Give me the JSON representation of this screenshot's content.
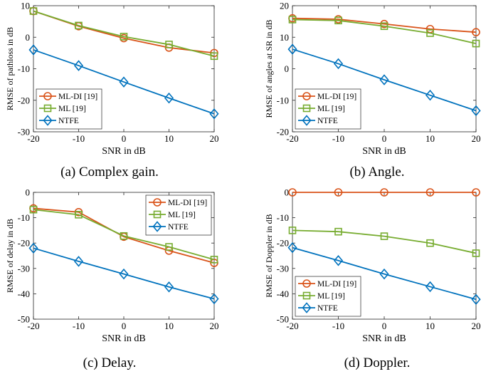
{
  "colors": {
    "ML-DI [19]": "#D95319",
    "ML [19]": "#77AC30",
    "NTFE": "#0072BD"
  },
  "chart_data": [
    {
      "type": "line",
      "caption": "(a) Complex gain.",
      "xlabel": "SNR in dB",
      "ylabel": "RMSE of pathloss in dB",
      "xlim": [
        -20,
        20
      ],
      "ylim": [
        -30,
        10
      ],
      "xticks": [
        -20,
        -10,
        0,
        10,
        20
      ],
      "yticks": [
        -30,
        -20,
        -10,
        0,
        10
      ],
      "grid": false,
      "legend_position": "bottom-left",
      "x": [
        -20,
        -10,
        0,
        10,
        20
      ],
      "series": [
        {
          "name": "ML-DI [19]",
          "marker": "circle",
          "values": [
            8.3,
            3.5,
            -0.3,
            -3.3,
            -5
          ]
        },
        {
          "name": "ML [19]",
          "marker": "square",
          "values": [
            8.3,
            3.7,
            0.2,
            -2.3,
            -6
          ]
        },
        {
          "name": "NTFE",
          "marker": "diamond",
          "values": [
            -4,
            -9,
            -14.2,
            -19.3,
            -24.3
          ]
        }
      ]
    },
    {
      "type": "line",
      "caption": "(b) Angle.",
      "xlabel": "SNR in dB",
      "ylabel": "RMSE of angles at SR in dB",
      "xlim": [
        -20,
        20
      ],
      "ylim": [
        -20,
        20
      ],
      "xticks": [
        -20,
        -10,
        0,
        10,
        20
      ],
      "yticks": [
        -20,
        -10,
        0,
        10,
        20
      ],
      "grid": false,
      "legend_position": "bottom-left",
      "x": [
        -20,
        -10,
        0,
        10,
        20
      ],
      "series": [
        {
          "name": "ML-DI [19]",
          "marker": "circle",
          "values": [
            16,
            15.7,
            14.2,
            12.6,
            11.6
          ]
        },
        {
          "name": "ML [19]",
          "marker": "square",
          "values": [
            15.6,
            15.3,
            13.5,
            11.3,
            8
          ]
        },
        {
          "name": "NTFE",
          "marker": "diamond",
          "values": [
            6.2,
            1.6,
            -3.5,
            -8.4,
            -13.3
          ]
        }
      ]
    },
    {
      "type": "line",
      "caption": "(c) Delay.",
      "xlabel": "SNR in dB",
      "ylabel": "RMSE of delay in dB",
      "xlim": [
        -20,
        20
      ],
      "ylim": [
        -50,
        0
      ],
      "xticks": [
        -20,
        -10,
        0,
        10,
        20
      ],
      "yticks": [
        -50,
        -40,
        -30,
        -20,
        -10,
        0
      ],
      "grid": false,
      "legend_position": "top-right",
      "x": [
        -20,
        -10,
        0,
        10,
        20
      ],
      "series": [
        {
          "name": "ML-DI [19]",
          "marker": "circle",
          "values": [
            -6.3,
            -7.8,
            -17.5,
            -23,
            -27.8
          ]
        },
        {
          "name": "ML [19]",
          "marker": "square",
          "values": [
            -6.8,
            -8.8,
            -17.2,
            -21.5,
            -26.5
          ]
        },
        {
          "name": "NTFE",
          "marker": "diamond",
          "values": [
            -22,
            -27.2,
            -32.2,
            -37.3,
            -42
          ]
        }
      ]
    },
    {
      "type": "line",
      "caption": "(d) Doppler.",
      "xlabel": "SNR in dB",
      "ylabel": "RMSE of Doppler in dB",
      "xlim": [
        -20,
        20
      ],
      "ylim": [
        -50,
        0
      ],
      "xticks": [
        -20,
        -10,
        0,
        10,
        20
      ],
      "yticks": [
        -50,
        -40,
        -30,
        -20,
        -10,
        0
      ],
      "grid": false,
      "legend_position": "bottom-left",
      "x": [
        -20,
        -10,
        0,
        10,
        20
      ],
      "series": [
        {
          "name": "ML-DI [19]",
          "marker": "circle",
          "values": [
            0,
            0,
            0,
            0,
            0
          ]
        },
        {
          "name": "ML [19]",
          "marker": "square",
          "values": [
            -15,
            -15.5,
            -17.3,
            -20,
            -24
          ]
        },
        {
          "name": "NTFE",
          "marker": "diamond",
          "values": [
            -21.8,
            -26.9,
            -32.2,
            -37.2,
            -42.2
          ]
        }
      ]
    }
  ]
}
